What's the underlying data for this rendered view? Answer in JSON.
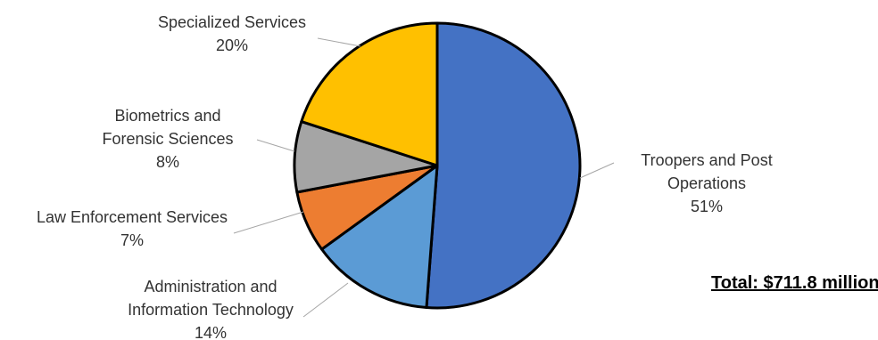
{
  "chart_data": {
    "type": "pie",
    "slices": [
      {
        "label": [
          "Troopers and Post",
          "Operations"
        ],
        "percent_label": "51%",
        "value": 51.2,
        "color": "#4472C4"
      },
      {
        "label": [
          "Administration and",
          "Information Technology"
        ],
        "percent_label": "14%",
        "value": 13.8,
        "color": "#5B9BD5"
      },
      {
        "label": [
          "Law Enforcement Services"
        ],
        "percent_label": "7%",
        "value": 7,
        "color": "#ED7D31"
      },
      {
        "label": [
          "Biometrics and",
          "Forensic Sciences"
        ],
        "percent_label": "8%",
        "value": 8,
        "color": "#A5A5A5"
      },
      {
        "label": [
          "Specialized Services"
        ],
        "percent_label": "20%",
        "value": 20,
        "color": "#FFC000"
      }
    ],
    "start_angle": "12 o'clock",
    "direction": "clockwise"
  },
  "total_label": "Total: $711.8 million"
}
